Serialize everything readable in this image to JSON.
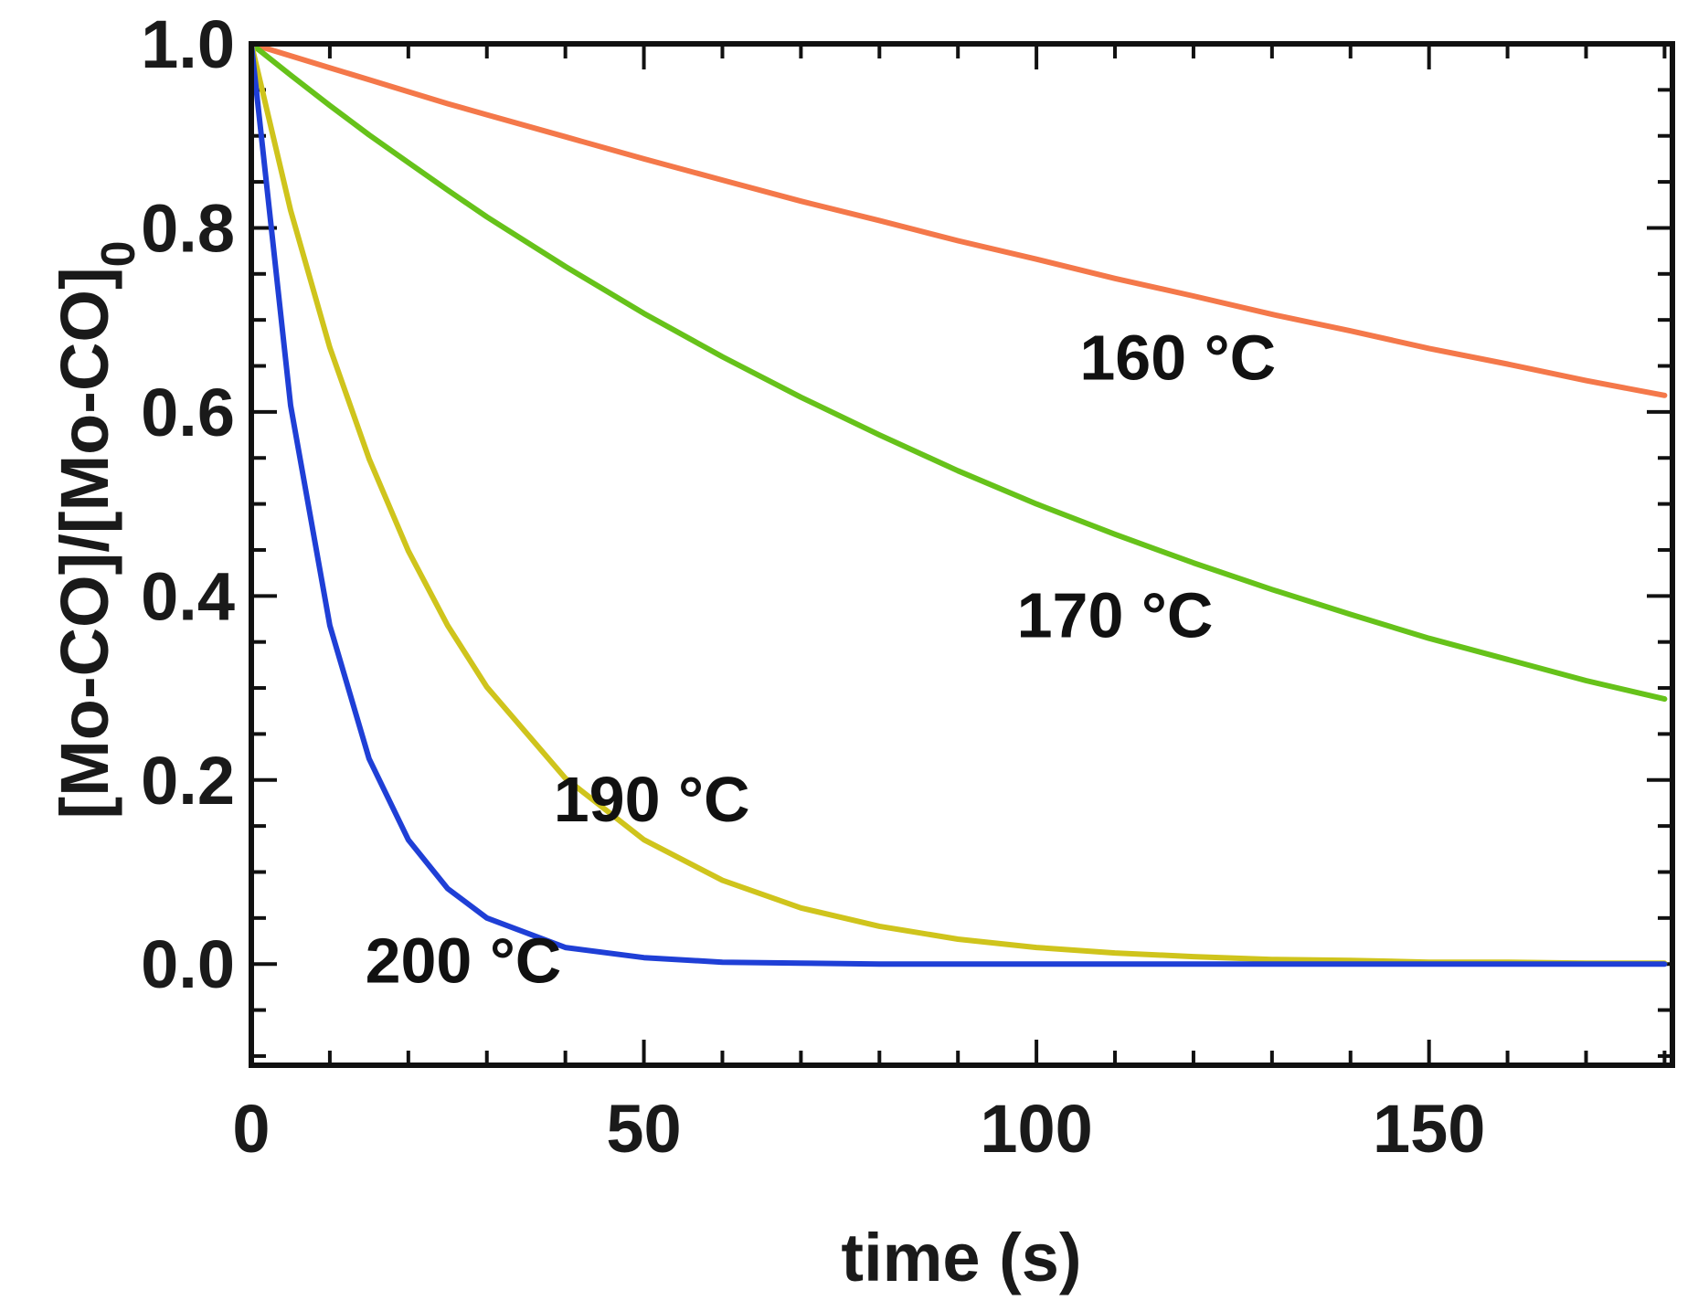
{
  "chart_data": {
    "type": "line",
    "title": "",
    "xlabel": "time (s)",
    "ylabel_main": "[Mo-CO]/[Mo-CO]",
    "ylabel_subscript": "0",
    "xlim": [
      0,
      181
    ],
    "ylim": [
      -0.11,
      1.0
    ],
    "x_major_ticks": [
      0,
      50,
      100,
      150
    ],
    "x_tick_labels": [
      "0",
      "50",
      "100",
      "150"
    ],
    "x_minor_step": 10,
    "y_major_ticks": [
      0.0,
      0.2,
      0.4,
      0.6,
      0.8,
      1.0
    ],
    "y_tick_labels": [
      "0.0",
      "0.2",
      "0.4",
      "0.6",
      "0.8",
      "1.0"
    ],
    "y_minor_step": 0.05,
    "grid": false,
    "x": [
      0,
      5,
      10,
      15,
      20,
      25,
      30,
      40,
      50,
      60,
      70,
      80,
      90,
      100,
      110,
      120,
      130,
      140,
      150,
      160,
      170,
      180
    ],
    "series": [
      {
        "name": "160 °C",
        "label_number": "160",
        "label_unit": "°C",
        "color": "#f4784a",
        "label_anchor": [
          118,
          0.635
        ],
        "values": [
          1.0,
          0.987,
          0.974,
          0.961,
          0.948,
          0.935,
          0.923,
          0.899,
          0.875,
          0.852,
          0.829,
          0.808,
          0.786,
          0.766,
          0.745,
          0.726,
          0.706,
          0.688,
          0.669,
          0.652,
          0.634,
          0.618
        ]
      },
      {
        "name": "170 °C",
        "label_number": "170",
        "label_unit": "°C",
        "color": "#66c21a",
        "label_anchor": [
          110,
          0.355
        ],
        "values": [
          1.0,
          0.966,
          0.933,
          0.901,
          0.871,
          0.841,
          0.812,
          0.758,
          0.707,
          0.66,
          0.616,
          0.575,
          0.536,
          0.5,
          0.467,
          0.436,
          0.407,
          0.38,
          0.354,
          0.331,
          0.308,
          0.288
        ]
      },
      {
        "name": "190 °C",
        "label_number": "190",
        "label_unit": "°C",
        "color": "#cfc41c",
        "label_anchor": [
          51,
          0.155
        ],
        "values": [
          1.0,
          0.819,
          0.67,
          0.549,
          0.449,
          0.368,
          0.301,
          0.202,
          0.135,
          0.091,
          0.061,
          0.041,
          0.027,
          0.018,
          0.012,
          0.008,
          0.005,
          0.004,
          0.002,
          0.002,
          0.001,
          0.001
        ]
      },
      {
        "name": "200 °C",
        "label_number": "200",
        "label_unit": "°C",
        "color": "#1f3fd6",
        "label_anchor": [
          27,
          -0.02
        ],
        "values": [
          1.0,
          0.607,
          0.368,
          0.223,
          0.135,
          0.082,
          0.05,
          0.018,
          0.007,
          0.002,
          0.001,
          0.0,
          0.0,
          0.0,
          0.0,
          0.0,
          0.0,
          0.0,
          0.0,
          0.0,
          0.0,
          0.0
        ]
      }
    ]
  }
}
